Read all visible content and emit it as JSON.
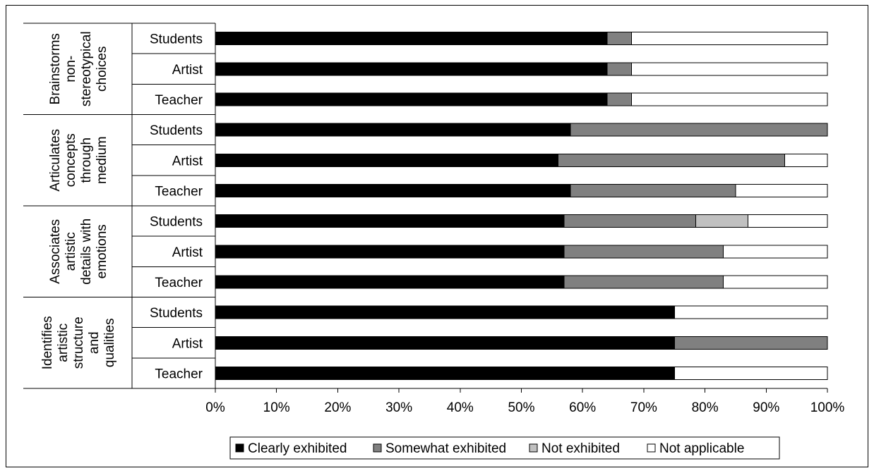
{
  "chart_data": {
    "type": "bar",
    "orientation": "horizontal",
    "stacked": "percent",
    "xlim": [
      0,
      100
    ],
    "x_ticks": [
      "0%",
      "10%",
      "20%",
      "30%",
      "40%",
      "50%",
      "60%",
      "70%",
      "80%",
      "90%",
      "100%"
    ],
    "groups": [
      {
        "label_lines": [
          "Brainstorms",
          "non-",
          "stereotypical",
          "choices"
        ],
        "rows": [
          {
            "label": "Students",
            "values": [
              64,
              4,
              0,
              32
            ]
          },
          {
            "label": "Artist",
            "values": [
              64,
              4,
              0,
              32
            ]
          },
          {
            "label": "Teacher",
            "values": [
              64,
              4,
              0,
              32
            ]
          }
        ]
      },
      {
        "label_lines": [
          "Articulates",
          "concepts",
          "through",
          "medium"
        ],
        "rows": [
          {
            "label": "Students",
            "values": [
              58,
              42,
              0,
              0
            ]
          },
          {
            "label": "Artist",
            "values": [
              56,
              37,
              0,
              7
            ]
          },
          {
            "label": "Teacher",
            "values": [
              58,
              27,
              0,
              15
            ]
          }
        ]
      },
      {
        "label_lines": [
          "Associates",
          "artistic",
          "details with",
          "emotions"
        ],
        "rows": [
          {
            "label": "Students",
            "values": [
              57,
              21.5,
              8.5,
              13
            ]
          },
          {
            "label": "Artist",
            "values": [
              57,
              26,
              0,
              17
            ]
          },
          {
            "label": "Teacher",
            "values": [
              57,
              26,
              0,
              17
            ]
          }
        ]
      },
      {
        "label_lines": [
          "Identifies",
          "artistic",
          "structure",
          "and",
          "qualities"
        ],
        "rows": [
          {
            "label": "Students",
            "values": [
              75,
              0,
              0,
              25
            ]
          },
          {
            "label": "Artist",
            "values": [
              75,
              25,
              0,
              0
            ]
          },
          {
            "label": "Teacher",
            "values": [
              75,
              0,
              0,
              25
            ]
          }
        ]
      }
    ],
    "series": [
      {
        "name": "Clearly exhibited",
        "color": "#000000"
      },
      {
        "name": "Somewhat exhibited",
        "color": "#808080"
      },
      {
        "name": "Not exhibited",
        "color": "#c0c0c0"
      },
      {
        "name": "Not applicable",
        "color": "#ffffff"
      }
    ],
    "legend_position": "bottom",
    "grid": false
  }
}
